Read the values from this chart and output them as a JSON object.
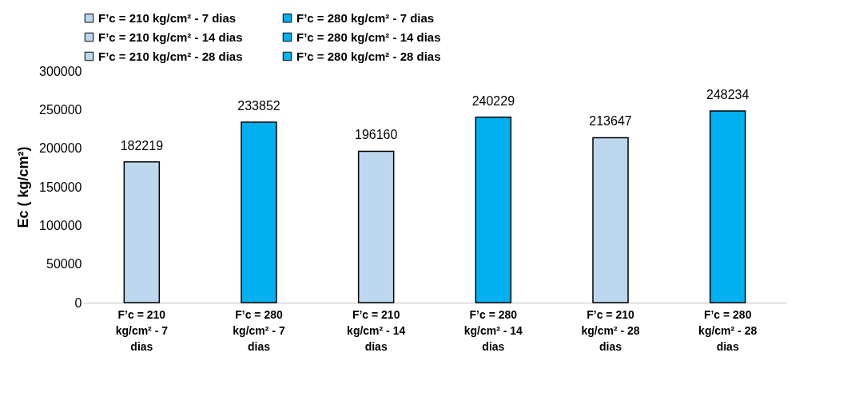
{
  "chart_data": {
    "type": "bar",
    "ylabel": "Ec ( kg/cm²)",
    "categories": [
      "F’c = 210 kg/cm²   - 7 dias",
      "F’c = 280 kg/cm²   - 7 dias",
      "F’c = 210 kg/cm²   - 14 dias",
      "F’c = 280 kg/cm²   - 14 dias",
      "F’c = 210 kg/cm²   - 28 dias",
      "F’c = 280 kg/cm²   - 28 dias"
    ],
    "series": [
      {
        "name": "F’c = 210 kg/cm²   - 7 dias",
        "color": "#bdd7ee",
        "values": [
          182219,
          null,
          null,
          null,
          null,
          null
        ]
      },
      {
        "name": "F’c = 280 kg/cm²   - 7 dias",
        "color": "#00b0f0",
        "values": [
          null,
          233852,
          null,
          null,
          null,
          null
        ]
      },
      {
        "name": "F’c = 210 kg/cm²   - 14 dias",
        "color": "#bdd7ee",
        "values": [
          null,
          null,
          196160,
          null,
          null,
          null
        ]
      },
      {
        "name": "F’c = 280 kg/cm²   - 14 dias",
        "color": "#00b0f0",
        "values": [
          null,
          null,
          null,
          240229,
          null,
          null
        ]
      },
      {
        "name": "F’c = 210 kg/cm²   - 28 dias",
        "color": "#bdd7ee",
        "values": [
          null,
          null,
          null,
          null,
          213647,
          null
        ]
      },
      {
        "name": "F’c = 280 kg/cm²   - 28 dias",
        "color": "#00b0f0",
        "values": [
          null,
          null,
          null,
          null,
          null,
          248234
        ]
      }
    ],
    "ylim": [
      0,
      300000
    ],
    "yticks": [
      0,
      50000,
      100000,
      150000,
      200000,
      250000,
      300000
    ],
    "grid": false,
    "legend": "top",
    "data_labels": true
  }
}
